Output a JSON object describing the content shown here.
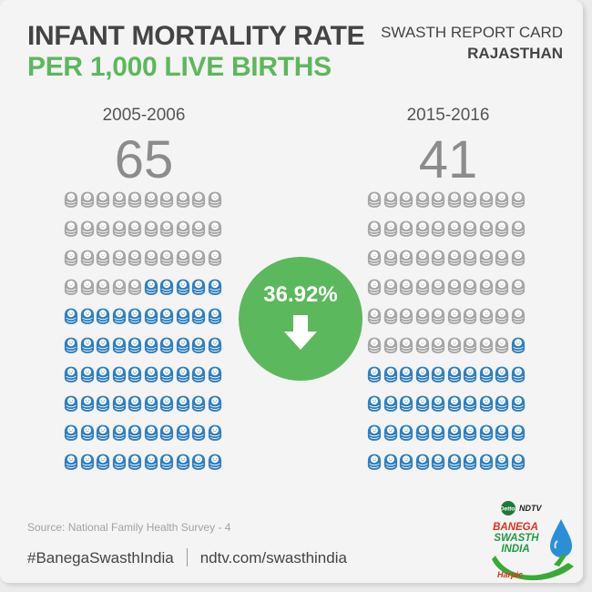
{
  "header": {
    "title": "INFANT MORTALITY RATE",
    "subtitle": "PER 1,000 LIVE BIRTHS",
    "report": "SWASTH REPORT CARD",
    "state": "RAJASTHAN"
  },
  "panels": [
    {
      "year": "2005-2006",
      "value": "65",
      "grey_count": 35,
      "blue_count": 65
    },
    {
      "year": "2015-2016",
      "value": "41",
      "grey_count": 59,
      "blue_count": 41
    }
  ],
  "change": {
    "percent": "36.92%",
    "direction": "down"
  },
  "source": "Source: National Family Health Survey - 4",
  "footer": {
    "hashtag": "#BanegaSwasthIndia",
    "url": "ndtv.com/swasthindia"
  },
  "logo": {
    "dettol": "Dettol",
    "ndtv": "NDTV",
    "line1": "BANEGA",
    "line2": "SWASTH",
    "line3": "INDIA",
    "harpic": "Harpic"
  },
  "colors": {
    "title": "#444444",
    "subtitle": "#5cb85c",
    "baby_grey": "#a6a6a6",
    "baby_blue": "#2f7fc0",
    "circle": "#5cb85c"
  },
  "icons": {
    "baby": "swaddled-baby-icon",
    "arrow": "arrow-down-icon"
  }
}
